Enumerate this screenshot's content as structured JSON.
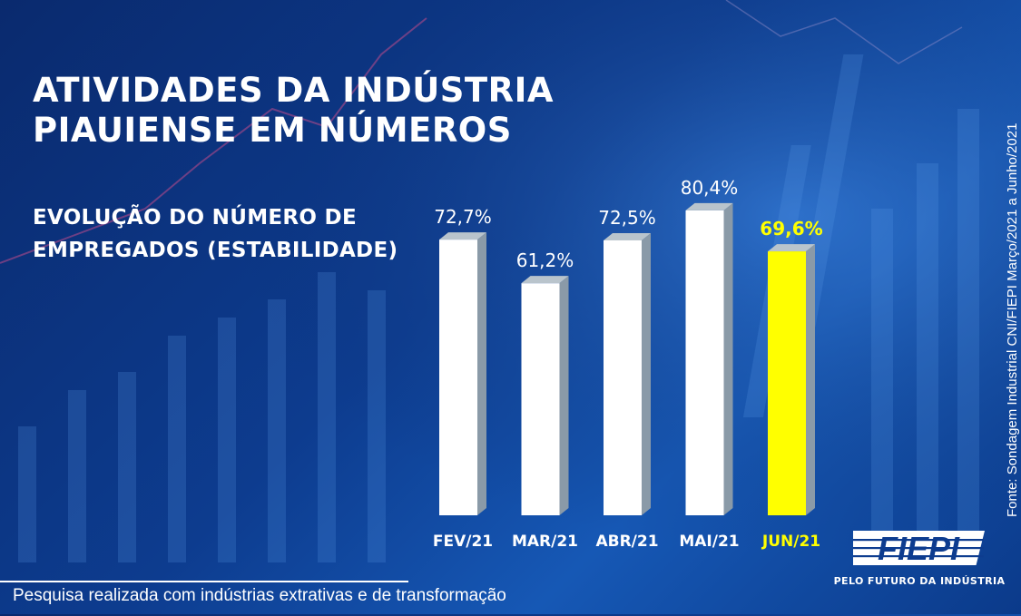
{
  "title_lines": [
    "ATIVIDADES DA INDÚSTRIA",
    "PIAUIENSE EM NÚMEROS"
  ],
  "subtitle_lines": [
    "EVOLUÇÃO DO NÚMERO DE",
    "EMPREGADOS (ESTABILIDADE)"
  ],
  "source": "Fonte: Sondagem Industrial CNI/FIEPI Março/2021 a Junho/2021",
  "footer_note": "Pesquisa realizada com indústrias extrativas e de transformação",
  "logo": {
    "text": "FIEPI",
    "tagline": "PELO FUTURO DA INDÚSTRIA"
  },
  "colors": {
    "background": "#0d3c8f",
    "bar": "#ffffff",
    "bar_highlight": "#ffff00",
    "bar_side": "#8a9aa8",
    "label": "#ffffff",
    "label_highlight": "#ffff00"
  },
  "chart_data": {
    "type": "bar",
    "title": "",
    "xlabel": "",
    "ylabel": "",
    "categories": [
      "FEV/21",
      "MAR/21",
      "ABR/21",
      "MAI/21",
      "JUN/21"
    ],
    "values": [
      72.7,
      61.2,
      72.5,
      80.4,
      69.6
    ],
    "value_labels": [
      "72,7%",
      "61,2%",
      "72,5%",
      "80,4%",
      "69,6%"
    ],
    "highlight_index": 4,
    "unit": "%",
    "ylim": [
      0,
      100
    ],
    "grid": false,
    "legend": "none"
  }
}
